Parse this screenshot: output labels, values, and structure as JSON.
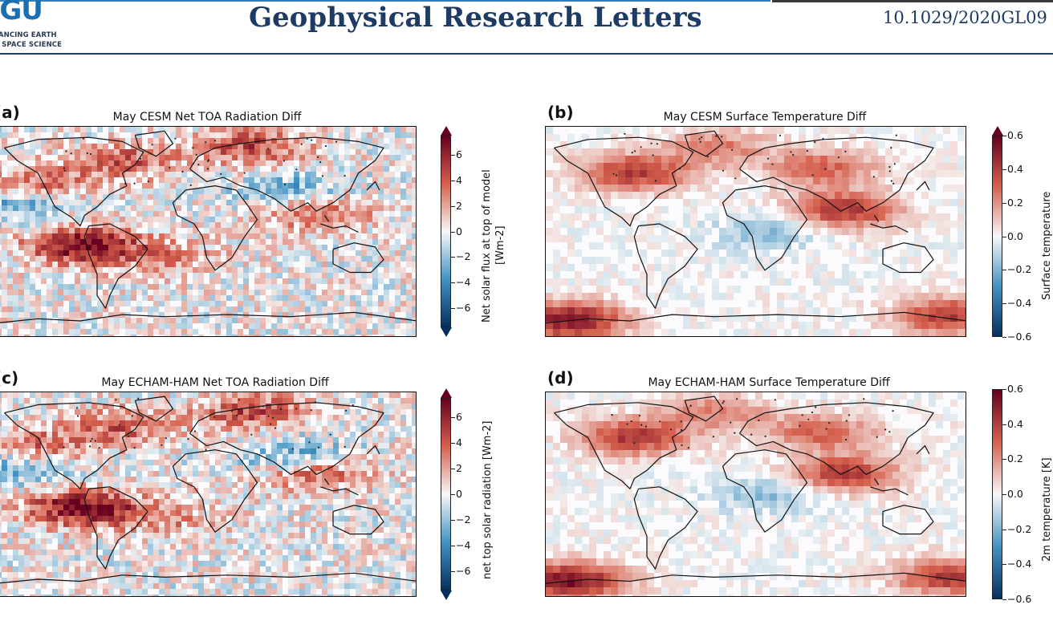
{
  "header": {
    "logo_mark": "AGU",
    "logo_line1": "ADVANCING EARTH",
    "logo_line2": "AND SPACE SCIENCE",
    "journal": "Geophysical Research Letters",
    "doi": "10.1029/2020GL09"
  },
  "panels": [
    {
      "letter": "(a)",
      "title": "May CESM Net TOA Radiation Diff",
      "colorbar": {
        "label_line1": "Net solar flux at top of model",
        "label_line2": "[Wm-2]",
        "ticks": [
          "6",
          "4",
          "2",
          "0",
          "−2",
          "−4",
          "−6"
        ],
        "range": [
          -7.5,
          7.5
        ],
        "extend": "both"
      },
      "field_type": "toa"
    },
    {
      "letter": "(b)",
      "title": "May CESM Surface Temperature Diff",
      "colorbar": {
        "label_line1": "Surface temperature",
        "label_line2": "",
        "ticks": [
          "0.6",
          "0.4",
          "0.2",
          "0.0",
          "−0.2",
          "−0.4",
          "−0.6"
        ],
        "range": [
          -0.6,
          0.6
        ],
        "extend": "max"
      },
      "field_type": "temp"
    },
    {
      "letter": "(c)",
      "title": "May ECHAM-HAM Net TOA Radiation Diff",
      "colorbar": {
        "label_line1": "net top solar radiation [Wm-2]",
        "label_line2": "",
        "ticks": [
          "6",
          "4",
          "2",
          "0",
          "−2",
          "−4",
          "−6"
        ],
        "range": [
          -7.5,
          7.5
        ],
        "extend": "both"
      },
      "field_type": "toa"
    },
    {
      "letter": "(d)",
      "title": "May ECHAM-HAM Surface Temperature Diff",
      "colorbar": {
        "label_line1": "2m temperature [K]",
        "label_line2": "",
        "ticks": [
          "0.6",
          "0.4",
          "0.2",
          "0.0",
          "−0.2",
          "−0.4",
          "−0.6"
        ],
        "range": [
          -0.6,
          0.6
        ],
        "extend": "none"
      },
      "field_type": "temp"
    }
  ],
  "colors": {
    "positive_max": "#67001f",
    "positive_mid": "#d6604d",
    "neutral": "#f7f7f7",
    "negative_mid": "#4393c3",
    "negative_max": "#053061",
    "coast": "#111111",
    "header_blue": "#1d3b63"
  }
}
